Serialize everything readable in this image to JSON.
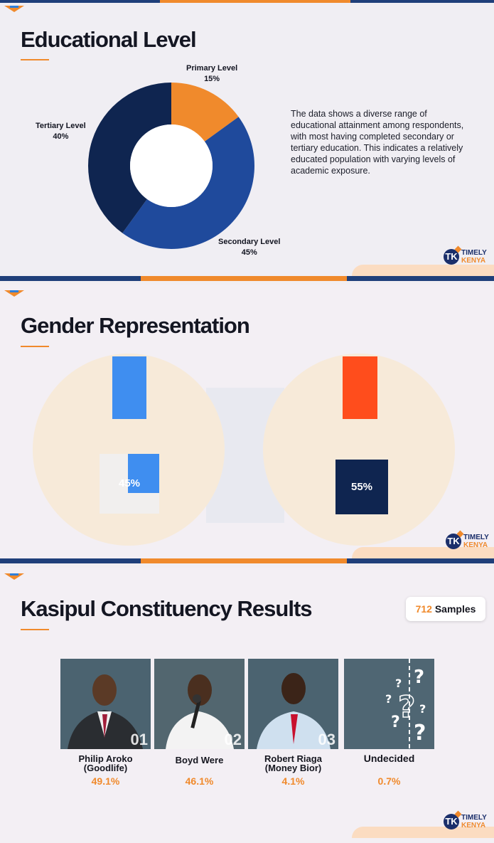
{
  "sections": {
    "education": {
      "title": "Educational Level",
      "description": "The data shows a diverse range of educational attainment among respondents, with most having completed secondary or tertiary education. This indicates a relatively educated population with varying levels of academic exposure."
    },
    "gender": {
      "title": "Gender Representation"
    },
    "results": {
      "title": "Kasipul Constituency Results",
      "samples_count": "712",
      "samples_word": "Samples"
    }
  },
  "brand": {
    "line1": "TIMELY",
    "line2": "KENYA",
    "mark": "TK"
  },
  "colors": {
    "orange": "#f08a2c",
    "navy": "#0f2550",
    "royal": "#1f4a9c",
    "blue_bar": "#3f8ef0",
    "red_bar": "#ff4d1c",
    "dark_bar": "#0f2550"
  },
  "chart_data": [
    {
      "type": "pie",
      "title": "Educational Level",
      "categories": [
        "Primary Level",
        "Secondary Level",
        "Tertiary Level"
      ],
      "values": [
        15,
        45,
        40
      ],
      "labels": [
        "15%",
        "45%",
        "40%"
      ],
      "donut": true
    },
    {
      "type": "bar",
      "title": "Gender Representation",
      "categories": [
        "",
        ""
      ],
      "values": [
        45,
        55
      ],
      "labels": [
        "45%",
        "55%"
      ]
    },
    {
      "type": "bar",
      "title": "Kasipul Constituency Results",
      "categories": [
        "Philip Aroko (Goodlife)",
        "Boyd Were",
        "Robert Riaga (Money Bior)",
        "Undecided"
      ],
      "values": [
        49.1,
        46.1,
        4.1,
        0.7
      ],
      "labels": [
        "49.1%",
        "46.1%",
        "4.1%",
        "0.7%"
      ]
    }
  ],
  "candidates": [
    {
      "name1": "Philip Aroko",
      "name2": "(Goodlife)",
      "pct": "49.1%",
      "num": "01"
    },
    {
      "name1": "Boyd Were",
      "name2": "",
      "pct": "46.1%",
      "num": "02"
    },
    {
      "name1": "Robert Riaga",
      "name2": "(Money Bior)",
      "pct": "4.1%",
      "num": "03"
    },
    {
      "name1": "Undecided",
      "name2": "",
      "pct": "0.7%",
      "num": ""
    }
  ]
}
